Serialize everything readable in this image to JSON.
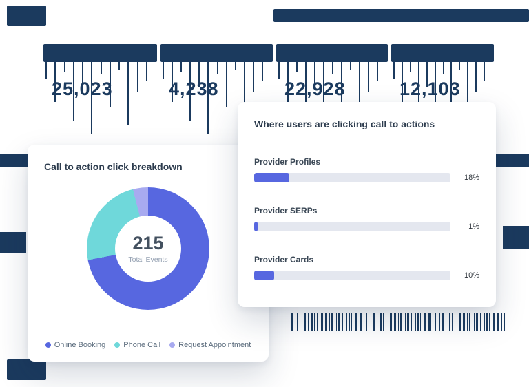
{
  "colors": {
    "navy": "#1b3a5e",
    "indigo": "#5767e0",
    "teal": "#6fd8da",
    "lavender": "#a8aaf0",
    "bar_track": "#e4e7ef"
  },
  "stats_strip": {
    "values": [
      "25,023",
      "4,238",
      "22,928",
      "12,103"
    ]
  },
  "breakdown_card": {
    "title": "Call to action click breakdown",
    "center_value": "215",
    "center_label": "Total Events",
    "legend": [
      {
        "label": "Online Booking"
      },
      {
        "label": "Phone Call"
      },
      {
        "label": "Request Appointment"
      }
    ]
  },
  "cta_card": {
    "title": "Where users are clicking call to actions",
    "rows": [
      {
        "label": "Provider Profiles",
        "percent_label": "18%",
        "percent": 18
      },
      {
        "label": "Provider SERPs",
        "percent_label": "1%",
        "percent": 1
      },
      {
        "label": "Provider Cards",
        "percent_label": "10%",
        "percent": 10
      }
    ]
  },
  "chart_data": [
    {
      "type": "pie",
      "title": "Call to action click breakdown",
      "labels": [
        "Online Booking",
        "Phone Call",
        "Request Appointment"
      ],
      "values_pct": [
        72,
        24,
        4
      ],
      "total": 215,
      "center_label": "Total Events",
      "colors": [
        "#5767e0",
        "#6fd8da",
        "#a8aaf0"
      ],
      "legend_position": "bottom",
      "donut": true
    },
    {
      "type": "bar",
      "orientation": "horizontal",
      "title": "Where users are clicking call to actions",
      "categories": [
        "Provider Profiles",
        "Provider SERPs",
        "Provider Cards"
      ],
      "values": [
        18,
        1,
        10
      ],
      "value_labels": [
        "18%",
        "1%",
        "10%"
      ],
      "xlim": [
        0,
        100
      ],
      "grid": false
    }
  ]
}
